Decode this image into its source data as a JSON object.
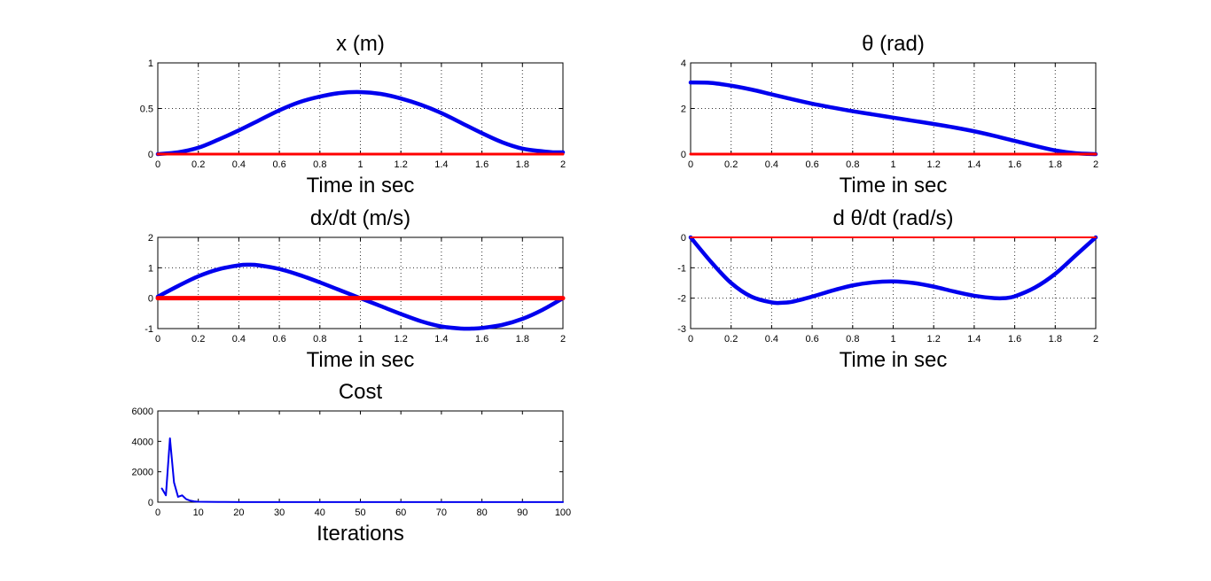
{
  "figure": {
    "background": "#ffffff"
  },
  "chart_data": [
    {
      "id": "x",
      "type": "line",
      "title": "x (m)",
      "xlabel": "Time in sec",
      "ylabel": "",
      "xlim": [
        0,
        2
      ],
      "ylim": [
        0,
        1
      ],
      "xticks": [
        "0",
        "0.2",
        "0.4",
        "0.6",
        "0.8",
        "1",
        "1.2",
        "1.4",
        "1.6",
        "1.8",
        "2"
      ],
      "yticks": [
        "0",
        "0.5",
        "1"
      ],
      "grid": true,
      "series": [
        {
          "color": "#0000ee",
          "x": [
            0,
            0.1,
            0.2,
            0.3,
            0.4,
            0.5,
            0.6,
            0.7,
            0.8,
            0.9,
            1.0,
            1.1,
            1.2,
            1.3,
            1.4,
            1.5,
            1.6,
            1.7,
            1.8,
            1.9,
            1.95,
            2.0
          ],
          "y": [
            0,
            0.02,
            0.07,
            0.16,
            0.26,
            0.37,
            0.48,
            0.57,
            0.63,
            0.67,
            0.68,
            0.66,
            0.61,
            0.54,
            0.45,
            0.34,
            0.23,
            0.13,
            0.06,
            0.03,
            0.02,
            0.02
          ]
        },
        {
          "color": "#ff0000",
          "x": [
            0,
            2
          ],
          "y": [
            0,
            0
          ]
        }
      ]
    },
    {
      "id": "theta",
      "type": "line",
      "title": "θ (rad)",
      "xlabel": "Time in sec",
      "ylabel": "",
      "xlim": [
        0,
        2
      ],
      "ylim": [
        0,
        4
      ],
      "xticks": [
        "0",
        "0.2",
        "0.4",
        "0.6",
        "0.8",
        "1",
        "1.2",
        "1.4",
        "1.6",
        "1.8",
        "2"
      ],
      "yticks": [
        "0",
        "2",
        "4"
      ],
      "grid": true,
      "series": [
        {
          "color": "#0000ee",
          "x": [
            0,
            0.1,
            0.2,
            0.3,
            0.4,
            0.5,
            0.6,
            0.7,
            0.8,
            0.9,
            1.0,
            1.1,
            1.2,
            1.3,
            1.4,
            1.5,
            1.6,
            1.7,
            1.8,
            1.9,
            2.0
          ],
          "y": [
            3.14,
            3.12,
            3.0,
            2.83,
            2.62,
            2.41,
            2.21,
            2.04,
            1.88,
            1.74,
            1.6,
            1.46,
            1.32,
            1.17,
            1.0,
            0.8,
            0.58,
            0.36,
            0.16,
            0.04,
            0.0
          ]
        },
        {
          "color": "#ff0000",
          "x": [
            0,
            2
          ],
          "y": [
            0,
            0
          ]
        }
      ]
    },
    {
      "id": "dx",
      "type": "line",
      "title": "dx/dt (m/s)",
      "xlabel": "Time in sec",
      "ylabel": "",
      "xlim": [
        0,
        2
      ],
      "ylim": [
        -1,
        2
      ],
      "xticks": [
        "0",
        "0.2",
        "0.4",
        "0.6",
        "0.8",
        "1",
        "1.2",
        "1.4",
        "1.6",
        "1.8",
        "2"
      ],
      "yticks": [
        "-1",
        "0",
        "1",
        "2"
      ],
      "grid": true,
      "series": [
        {
          "color": "#0000ee",
          "x": [
            0,
            0.1,
            0.2,
            0.3,
            0.4,
            0.45,
            0.5,
            0.6,
            0.7,
            0.8,
            0.9,
            1.0,
            1.1,
            1.2,
            1.3,
            1.4,
            1.5,
            1.55,
            1.6,
            1.7,
            1.8,
            1.9,
            2.0
          ],
          "y": [
            0.05,
            0.4,
            0.72,
            0.95,
            1.08,
            1.1,
            1.08,
            0.96,
            0.76,
            0.52,
            0.26,
            0.0,
            -0.26,
            -0.52,
            -0.76,
            -0.93,
            -1.0,
            -1.0,
            -0.98,
            -0.88,
            -0.68,
            -0.38,
            0.0
          ]
        },
        {
          "color": "#ff0000",
          "x": [
            0,
            2
          ],
          "y": [
            0,
            0
          ]
        }
      ]
    },
    {
      "id": "dtheta",
      "type": "line",
      "title": "d θ/dt (rad/s)",
      "xlabel": "Time in sec",
      "ylabel": "",
      "xlim": [
        0,
        2
      ],
      "ylim": [
        -3,
        0
      ],
      "xticks": [
        "0",
        "0.2",
        "0.4",
        "0.6",
        "0.8",
        "1",
        "1.2",
        "1.4",
        "1.6",
        "1.8",
        "2"
      ],
      "yticks": [
        "-3",
        "-2",
        "-1",
        "0"
      ],
      "grid": true,
      "series": [
        {
          "color": "#0000ee",
          "x": [
            0,
            0.1,
            0.2,
            0.3,
            0.4,
            0.45,
            0.5,
            0.6,
            0.7,
            0.8,
            0.9,
            1.0,
            1.1,
            1.2,
            1.3,
            1.4,
            1.5,
            1.55,
            1.6,
            1.7,
            1.8,
            1.9,
            2.0
          ],
          "y": [
            0,
            -0.8,
            -1.5,
            -1.95,
            -2.14,
            -2.15,
            -2.12,
            -1.95,
            -1.75,
            -1.58,
            -1.48,
            -1.45,
            -1.5,
            -1.62,
            -1.78,
            -1.92,
            -2.0,
            -2.0,
            -1.94,
            -1.65,
            -1.2,
            -0.6,
            0.0
          ]
        },
        {
          "color": "#ff0000",
          "x": [
            0,
            2
          ],
          "y": [
            0,
            0
          ]
        }
      ]
    },
    {
      "id": "cost",
      "type": "line",
      "title": "Cost",
      "xlabel": "Iterations",
      "ylabel": "",
      "xlim": [
        0,
        100
      ],
      "ylim": [
        0,
        6000
      ],
      "xticks": [
        "0",
        "10",
        "20",
        "30",
        "40",
        "50",
        "60",
        "70",
        "80",
        "90",
        "100"
      ],
      "yticks": [
        "0",
        "2000",
        "4000",
        "6000"
      ],
      "grid": false,
      "series": [
        {
          "color": "#0000ee",
          "x": [
            1,
            2,
            3,
            4,
            5,
            6,
            7,
            8,
            9,
            10,
            12,
            15,
            20,
            30,
            40,
            50,
            60,
            70,
            80,
            90,
            100
          ],
          "y": [
            900,
            450,
            4200,
            1300,
            350,
            450,
            200,
            100,
            50,
            30,
            20,
            15,
            10,
            10,
            10,
            10,
            10,
            10,
            10,
            10,
            10
          ]
        }
      ]
    }
  ]
}
